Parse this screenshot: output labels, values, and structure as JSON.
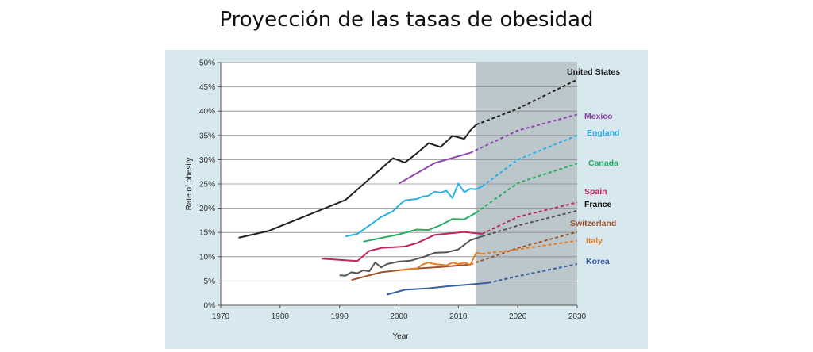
{
  "page": {
    "title": "Proyección de las tasas de obesidad"
  },
  "chart_data": {
    "type": "line",
    "title": "Proyección de las tasas de obesidad",
    "xlabel": "Year",
    "ylabel": "Rate of obesity",
    "xlim": [
      1970,
      2030
    ],
    "ylim": [
      0,
      50
    ],
    "xticks": [
      1970,
      1980,
      1990,
      2000,
      2010,
      2020,
      2030
    ],
    "xtick_labels": [
      "1970",
      "1980",
      "1990",
      "2000",
      "2010",
      "2020",
      "2030"
    ],
    "yticks": [
      0,
      5,
      10,
      15,
      20,
      25,
      30,
      35,
      40,
      45,
      50
    ],
    "ytick_labels": [
      "0%",
      "5%",
      "10%",
      "15%",
      "20%",
      "25%",
      "30%",
      "35%",
      "40%",
      "45%",
      "50%"
    ],
    "grid": "horizontal",
    "projection_shading": {
      "from_year": 2013,
      "to_year": 2030,
      "color": "#bcc7cc"
    },
    "series": [
      {
        "name": "United States",
        "color": "#222222",
        "observed": [
          [
            1973,
            13.9
          ],
          [
            1978,
            15.3
          ],
          [
            1991,
            21.7
          ],
          [
            1999,
            30.3
          ],
          [
            2001,
            29.4
          ],
          [
            2003,
            31.3
          ],
          [
            2005,
            33.4
          ],
          [
            2007,
            32.6
          ],
          [
            2009,
            34.9
          ],
          [
            2011,
            34.3
          ],
          [
            2012,
            36
          ],
          [
            2013,
            37.2
          ]
        ],
        "projected": [
          [
            2013,
            37.2
          ],
          [
            2020,
            40.5
          ],
          [
            2030,
            46.5
          ]
        ]
      },
      {
        "name": "Mexico",
        "color": "#8e44ad",
        "observed": [
          [
            2000,
            25.1
          ],
          [
            2006,
            29.3
          ],
          [
            2012,
            31.4
          ]
        ],
        "projected": [
          [
            2012,
            31.4
          ],
          [
            2020,
            36
          ],
          [
            2030,
            39.3
          ]
        ]
      },
      {
        "name": "England",
        "color": "#2ab0e6",
        "observed": [
          [
            1991,
            14.2
          ],
          [
            1993,
            14.7
          ],
          [
            1995,
            16.4
          ],
          [
            1997,
            18.2
          ],
          [
            1999,
            19.4
          ],
          [
            2000,
            20.6
          ],
          [
            2001,
            21.6
          ],
          [
            2003,
            21.9
          ],
          [
            2004,
            22.4
          ],
          [
            2005,
            22.6
          ],
          [
            2006,
            23.4
          ],
          [
            2007,
            23.2
          ],
          [
            2008,
            23.6
          ],
          [
            2009,
            22.1
          ],
          [
            2010,
            25.1
          ],
          [
            2011,
            23.3
          ],
          [
            2012,
            24
          ],
          [
            2013,
            23.9
          ],
          [
            2014,
            24.5
          ]
        ],
        "projected": [
          [
            2014,
            24.5
          ],
          [
            2020,
            30
          ],
          [
            2030,
            35
          ]
        ]
      },
      {
        "name": "Canada",
        "color": "#27ae60",
        "observed": [
          [
            1994,
            13.1
          ],
          [
            2000,
            14.6
          ],
          [
            2003,
            15.6
          ],
          [
            2005,
            15.5
          ],
          [
            2007,
            16.5
          ],
          [
            2009,
            17.8
          ],
          [
            2011,
            17.7
          ],
          [
            2013,
            19.1
          ]
        ],
        "projected": [
          [
            2013,
            19.1
          ],
          [
            2020,
            25.2
          ],
          [
            2030,
            29.2
          ]
        ]
      },
      {
        "name": "Spain",
        "color": "#c0265e",
        "observed": [
          [
            1987,
            9.6
          ],
          [
            1993,
            9.1
          ],
          [
            1995,
            11.2
          ],
          [
            1997,
            11.8
          ],
          [
            2001,
            12.1
          ],
          [
            2003,
            12.8
          ],
          [
            2006,
            14.5
          ],
          [
            2011,
            15.1
          ],
          [
            2014,
            14.7
          ]
        ],
        "projected": [
          [
            2014,
            14.7
          ],
          [
            2020,
            18.2
          ],
          [
            2030,
            21.2
          ]
        ]
      },
      {
        "name": "France",
        "color": "#555555",
        "observed": [
          [
            1990,
            6.2
          ],
          [
            1991,
            6.1
          ],
          [
            1992,
            6.8
          ],
          [
            1993,
            6.6
          ],
          [
            1994,
            7.2
          ],
          [
            1995,
            7
          ],
          [
            1996,
            8.8
          ],
          [
            1997,
            7.8
          ],
          [
            1998,
            8.5
          ],
          [
            2000,
            9
          ],
          [
            2002,
            9.2
          ],
          [
            2004,
            9.9
          ],
          [
            2006,
            10.8
          ],
          [
            2008,
            10.9
          ],
          [
            2010,
            11.5
          ],
          [
            2012,
            13.4
          ],
          [
            2014,
            14.2
          ]
        ],
        "projected": [
          [
            2014,
            14.2
          ],
          [
            2020,
            16.4
          ],
          [
            2030,
            19.5
          ]
        ]
      },
      {
        "name": "Switzerland",
        "color": "#a0522d",
        "observed": [
          [
            1992,
            5.2
          ],
          [
            1997,
            6.8
          ],
          [
            2002,
            7.5
          ],
          [
            2007,
            7.9
          ],
          [
            2012,
            8.4
          ]
        ],
        "projected": [
          [
            2012,
            8.4
          ],
          [
            2020,
            11.8
          ],
          [
            2030,
            15.1
          ]
        ]
      },
      {
        "name": "Italy",
        "color": "#e67e22",
        "observed": [
          [
            2000,
            7.2
          ],
          [
            2003,
            7.6
          ],
          [
            2004,
            8.4
          ],
          [
            2005,
            8.8
          ],
          [
            2006,
            8.5
          ],
          [
            2008,
            8.2
          ],
          [
            2009,
            8.8
          ],
          [
            2010,
            8.5
          ],
          [
            2011,
            8.8
          ],
          [
            2012,
            8.3
          ],
          [
            2013,
            10.8
          ],
          [
            2014,
            10.6
          ]
        ],
        "projected": [
          [
            2014,
            10.6
          ],
          [
            2020,
            11.5
          ],
          [
            2030,
            13.3
          ]
        ]
      },
      {
        "name": "Korea",
        "color": "#3a5fa0",
        "observed": [
          [
            1998,
            2.2
          ],
          [
            2001,
            3.2
          ],
          [
            2005,
            3.5
          ],
          [
            2008,
            3.9
          ],
          [
            2012,
            4.3
          ],
          [
            2015,
            4.6
          ]
        ],
        "projected": [
          [
            2015,
            4.6
          ],
          [
            2020,
            6
          ],
          [
            2030,
            8.5
          ]
        ]
      }
    ]
  }
}
